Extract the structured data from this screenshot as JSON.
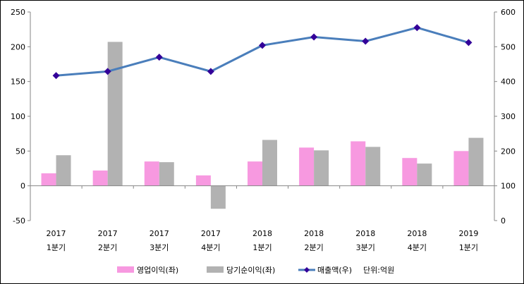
{
  "chart_data": {
    "type": "bar",
    "title": "",
    "categories": [
      {
        "year": "2017",
        "quarter": "1분기"
      },
      {
        "year": "2017",
        "quarter": "2분기"
      },
      {
        "year": "2017",
        "quarter": "3분기"
      },
      {
        "year": "2017",
        "quarter": "4분기"
      },
      {
        "year": "2018",
        "quarter": "1분기"
      },
      {
        "year": "2018",
        "quarter": "2분기"
      },
      {
        "year": "2018",
        "quarter": "3분기"
      },
      {
        "year": "2018",
        "quarter": "4분기"
      },
      {
        "year": "2019",
        "quarter": "1분기"
      }
    ],
    "series": [
      {
        "name": "영업이익(좌)",
        "type": "bar",
        "axis": "left",
        "color": "#f799e0",
        "values": [
          18,
          22,
          35,
          15,
          35,
          55,
          64,
          40,
          50
        ]
      },
      {
        "name": "당기순이익(좌)",
        "type": "bar",
        "axis": "left",
        "color": "#b2b2b2",
        "values": [
          44,
          207,
          34,
          -33,
          66,
          51,
          56,
          32,
          69
        ]
      },
      {
        "name": "매출액(우)",
        "type": "line",
        "axis": "right",
        "color": "#4a7ebb",
        "marker_color": "#330099",
        "values": [
          417,
          429,
          470,
          429,
          504,
          528,
          516,
          555,
          512
        ]
      }
    ],
    "left_axis": {
      "range": [
        -50,
        250
      ],
      "ticks": [
        "-50",
        "0",
        "50",
        "100",
        "150",
        "200",
        "250"
      ]
    },
    "right_axis": {
      "range": [
        0,
        600
      ],
      "ticks": [
        "0",
        "100",
        "200",
        "300",
        "400",
        "500",
        "600"
      ]
    },
    "legend_position": "bottom",
    "unit_note": "단위:억원"
  }
}
